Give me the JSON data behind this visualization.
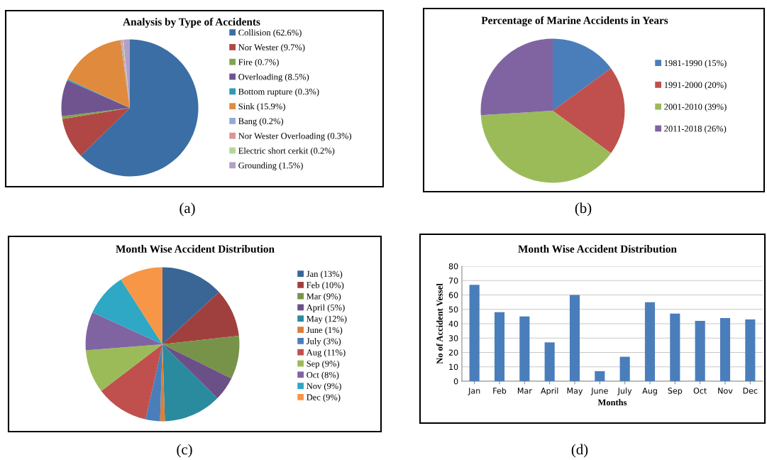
{
  "chart_data": [
    {
      "type": "pie",
      "title": "Analysis by Type of Accidents",
      "annotations": [
        "(a)"
      ],
      "legend": "right",
      "categories": [
        "Collision (62.6%)",
        "Nor Wester (9.7%)",
        "Fire (0.7%)",
        "Overloading (8.5%)",
        "Bottom rupture (0.3%)",
        "Sink (15.9%)",
        "Bang (0.2%)",
        "Nor Wester Overloading (0.3%)",
        "Electric short cerkit (0.2%)",
        "Grounding (1.5%)"
      ],
      "values": [
        62.6,
        9.7,
        0.7,
        8.5,
        0.3,
        15.9,
        0.2,
        0.3,
        0.2,
        1.5
      ],
      "colors": [
        "#3a6ea5",
        "#b04744",
        "#84a44a",
        "#6f5490",
        "#2f9bb3",
        "#e08a3e",
        "#93aad4",
        "#d99694",
        "#b7d59a",
        "#b2a1c7"
      ]
    },
    {
      "type": "pie",
      "title": "Percentage of Marine Accidents in Years",
      "annotations": [
        "(b)"
      ],
      "legend": "right",
      "categories": [
        "1981-1990 (15%)",
        "1991-2000 (20%)",
        "2001-2010 (39%)",
        "2011-2018 (26%)"
      ],
      "values": [
        15,
        20,
        39,
        26
      ],
      "colors": [
        "#4a7ebb",
        "#c0504d",
        "#9bbb59",
        "#8064a2"
      ]
    },
    {
      "type": "pie",
      "title": "Month Wise Accident Distribution",
      "annotations": [
        "(c)"
      ],
      "legend": "right",
      "categories": [
        "Jan (13%)",
        "Feb (10%)",
        "Mar (9%)",
        "April (5%)",
        "May (12%)",
        "June (1%)",
        "July (3%)",
        "Aug (11%)",
        "Sep (9%)",
        "Oct (8%)",
        "Nov (9%)",
        "Dec (9%)"
      ],
      "values": [
        13,
        10,
        9,
        5,
        12,
        1,
        3,
        11,
        9,
        8,
        9,
        9
      ],
      "colors": [
        "#3a6695",
        "#a0403e",
        "#77934a",
        "#6b5088",
        "#2a8a9e",
        "#d9803a",
        "#4a7ebb",
        "#c0504d",
        "#9bbb59",
        "#8064a2",
        "#2ea8c4",
        "#f79646"
      ]
    },
    {
      "type": "bar",
      "title": "Month Wise Accident Distribution",
      "annotations": [
        "(d)"
      ],
      "xlabel": "Months",
      "ylabel": "No of Accident Vessel",
      "categories": [
        "Jan",
        "Feb",
        "Mar",
        "April",
        "May",
        "June",
        "July",
        "Aug",
        "Sep",
        "Oct",
        "Nov",
        "Dec"
      ],
      "values": [
        67,
        48,
        45,
        27,
        60,
        7,
        17,
        55,
        47,
        42,
        44,
        43
      ],
      "color": "#4a7ebb",
      "ylim": [
        0,
        80
      ],
      "yticks": [
        0,
        10,
        20,
        30,
        40,
        50,
        60,
        70,
        80
      ],
      "grid": "y"
    }
  ]
}
